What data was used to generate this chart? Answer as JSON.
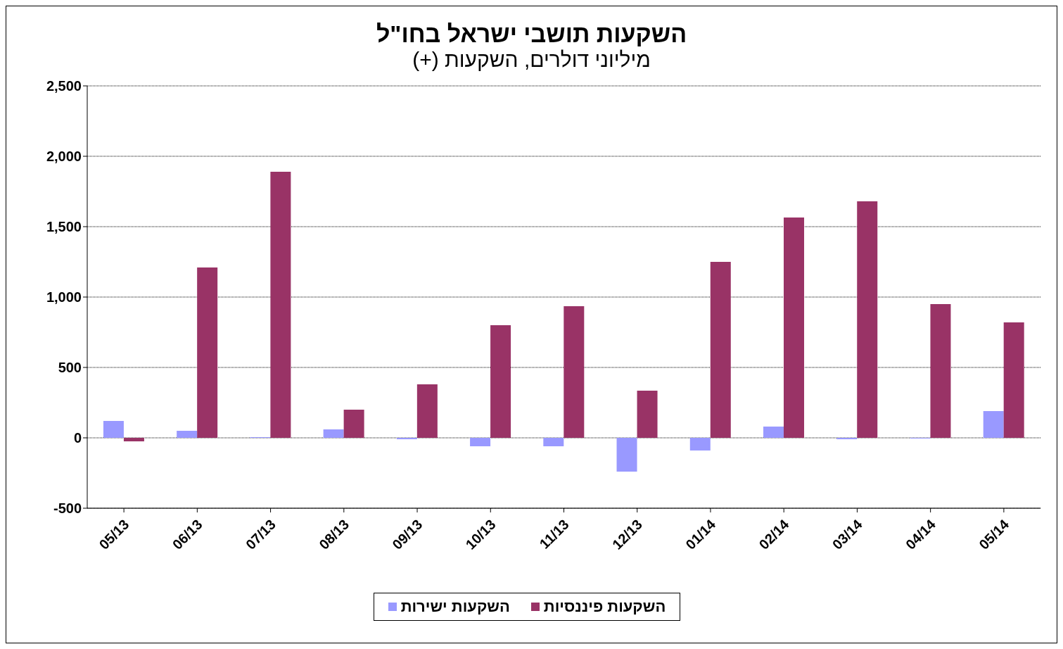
{
  "chart_data": {
    "type": "bar",
    "title": "השקעות תושבי ישראל בחו\"ל",
    "subtitle": "מיליוני דולרים, השקעות (+)",
    "categories": [
      "05/13",
      "06/13",
      "07/13",
      "08/13",
      "09/13",
      "10/13",
      "11/13",
      "12/13",
      "01/14",
      "02/14",
      "03/14",
      "04/14",
      "05/14"
    ],
    "series": [
      {
        "name": "השקעות ישירות",
        "color": "#9999ff",
        "values": [
          120,
          50,
          5,
          60,
          -10,
          -60,
          -60,
          -240,
          -90,
          80,
          -10,
          -5,
          190
        ]
      },
      {
        "name": "השקעות פיננסיות",
        "color": "#993366",
        "values": [
          -25,
          1210,
          1890,
          200,
          380,
          800,
          935,
          335,
          1250,
          1565,
          1680,
          950,
          820
        ]
      }
    ],
    "ylim": [
      -500,
      2500
    ],
    "yticks": [
      {
        "value": -500,
        "label": "-500"
      },
      {
        "value": 0,
        "label": "0"
      },
      {
        "value": 500,
        "label": "500"
      },
      {
        "value": 1000,
        "label": "1,000"
      },
      {
        "value": 1500,
        "label": "1,500"
      },
      {
        "value": 2000,
        "label": "2,000"
      },
      {
        "value": 2500,
        "label": "2,500"
      }
    ],
    "grid": "y",
    "legend": "bottom"
  }
}
